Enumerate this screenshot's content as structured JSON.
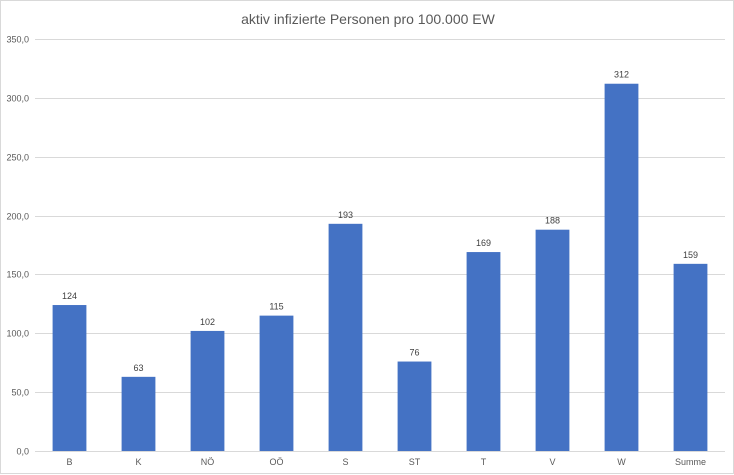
{
  "chart_data": {
    "type": "bar",
    "title": "aktiv infizierte Personen pro 100.000 EW",
    "categories": [
      "B",
      "K",
      "NÖ",
      "OÖ",
      "S",
      "ST",
      "T",
      "V",
      "W",
      "Summe"
    ],
    "values": [
      124,
      63,
      102,
      115,
      193,
      76,
      169,
      188,
      312,
      159
    ],
    "data_labels": [
      "124",
      "63",
      "102",
      "115",
      "193",
      "76",
      "169",
      "188",
      "312",
      "159"
    ],
    "ylim": [
      0,
      350
    ],
    "yticks": [
      "0,0",
      "50,0",
      "100,0",
      "150,0",
      "200,0",
      "250,0",
      "300,0",
      "350,0"
    ],
    "ytick_values": [
      0,
      50,
      100,
      150,
      200,
      250,
      300,
      350
    ],
    "grid": true,
    "legend": "none",
    "bar_color": "#4472C4"
  }
}
